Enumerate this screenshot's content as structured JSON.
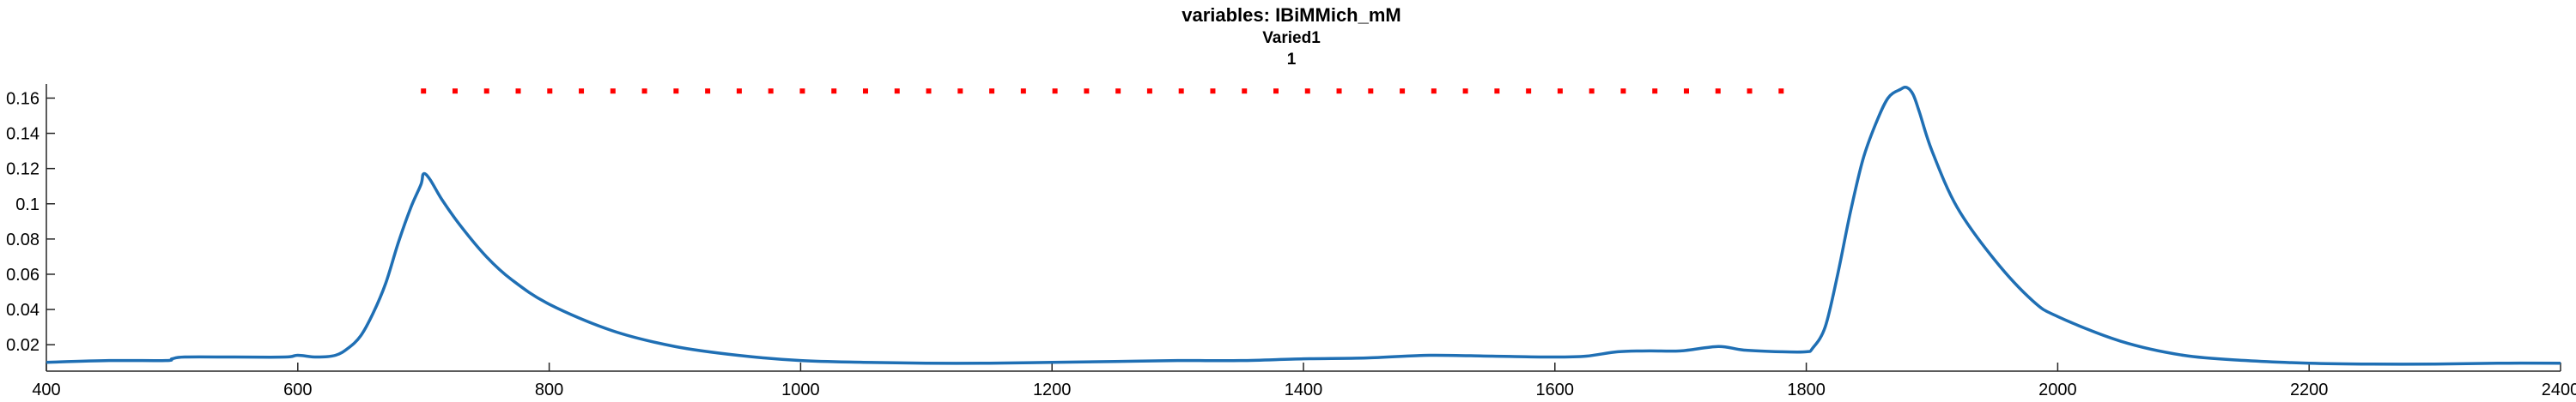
{
  "chart_data": {
    "type": "line",
    "title": "variables: IBiMMich_mM",
    "subtitle_lines": [
      "Varied1",
      "1"
    ],
    "xlabel": "",
    "ylabel": "",
    "xlim": [
      400,
      2400
    ],
    "ylim": [
      0.005,
      0.168
    ],
    "x_ticks": [
      400,
      600,
      800,
      1000,
      1200,
      1400,
      1600,
      1800,
      2000,
      2200,
      2400
    ],
    "x_tick_labels": [
      "400",
      "600",
      "800",
      "1000",
      "1200",
      "1400",
      "1600",
      "1800",
      "2000",
      "2200",
      "2400"
    ],
    "y_ticks": [
      0.02,
      0.04,
      0.06,
      0.08,
      0.1,
      0.12,
      0.14,
      0.16
    ],
    "y_tick_labels": [
      "0.02",
      "0.04",
      "0.06",
      "0.08",
      "0.1",
      "0.12",
      "0.14",
      "0.16"
    ],
    "grid": false,
    "series": [
      {
        "color": "#1f6fb4",
        "style": "solid",
        "x": [
          400,
          450,
          495,
          500,
          510,
          550,
          590,
          600,
          615,
          630,
          640,
          650,
          660,
          670,
          680,
          690,
          698,
          700,
          705,
          715,
          730,
          750,
          770,
          800,
          850,
          900,
          950,
          1000,
          1050,
          1100,
          1150,
          1200,
          1250,
          1300,
          1350,
          1400,
          1450,
          1500,
          1550,
          1600,
          1625,
          1650,
          1675,
          1700,
          1730,
          1750,
          1780,
          1800,
          1805,
          1815,
          1825,
          1835,
          1845,
          1855,
          1865,
          1875,
          1880,
          1885,
          1890,
          1900,
          1920,
          1950,
          1980,
          2000,
          2050,
          2100,
          2150,
          2200,
          2250,
          2300,
          2350,
          2400
        ],
        "values": [
          0.01,
          0.011,
          0.011,
          0.012,
          0.013,
          0.013,
          0.013,
          0.014,
          0.013,
          0.014,
          0.018,
          0.025,
          0.038,
          0.055,
          0.078,
          0.098,
          0.111,
          0.117,
          0.114,
          0.102,
          0.087,
          0.07,
          0.057,
          0.043,
          0.028,
          0.019,
          0.014,
          0.011,
          0.01,
          0.0095,
          0.0095,
          0.01,
          0.0105,
          0.011,
          0.011,
          0.012,
          0.0125,
          0.014,
          0.0135,
          0.013,
          0.0135,
          0.016,
          0.0165,
          0.0165,
          0.019,
          0.017,
          0.016,
          0.016,
          0.018,
          0.03,
          0.06,
          0.095,
          0.125,
          0.145,
          0.16,
          0.165,
          0.166,
          0.162,
          0.152,
          0.13,
          0.098,
          0.068,
          0.045,
          0.036,
          0.022,
          0.014,
          0.011,
          0.0095,
          0.009,
          0.009,
          0.0095,
          0.0095
        ]
      },
      {
        "color": "#ff0000",
        "style": "dotted-markers",
        "x": [
          700,
          1780
        ],
        "values": [
          0.164,
          0.164
        ]
      }
    ]
  }
}
